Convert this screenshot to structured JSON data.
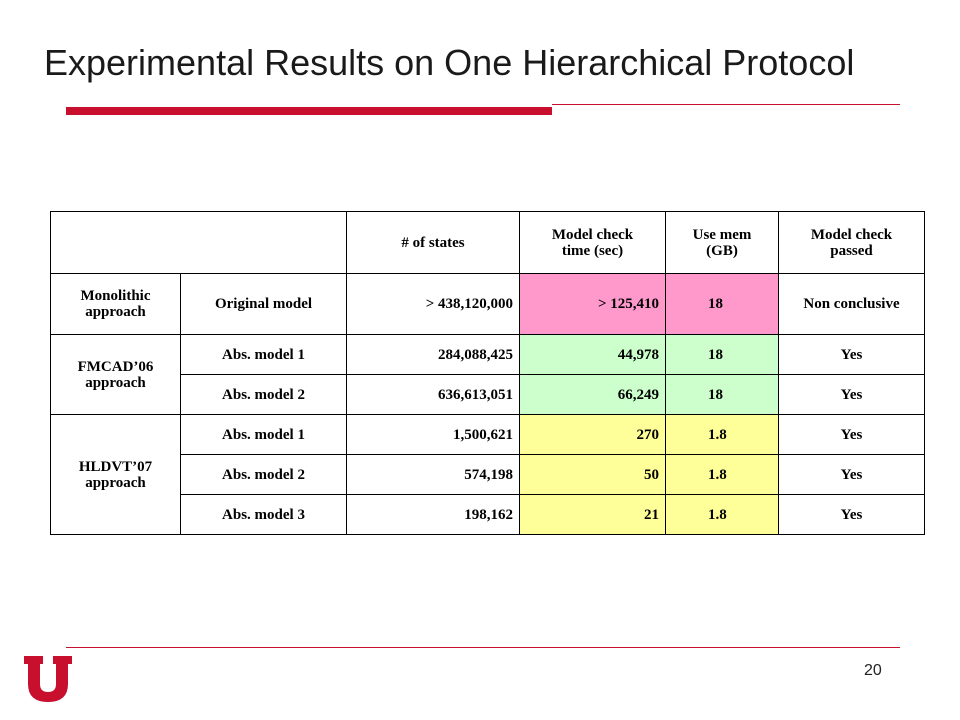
{
  "slide": {
    "title": "Experimental Results on One Hierarchical Protocol",
    "page_number": "20"
  },
  "table": {
    "headers": [
      "# of states",
      "Model check time (sec)",
      "Use mem (GB)",
      "Model check passed"
    ],
    "headers_html": [
      "# of states",
      "Model check<br>time (sec)",
      "Use mem<br>(GB)",
      "Model check<br>passed"
    ],
    "groups": [
      {
        "label": "Monolithic approach"
      },
      {
        "label": "FMCAD’06 approach"
      },
      {
        "label": "HLDVT’07 approach"
      }
    ],
    "rows": [
      {
        "model": "Original model",
        "states": "> 438,120,000",
        "time": "> 125,410",
        "mem": "18",
        "passed": "Non conclusive"
      },
      {
        "model": "Abs. model 1",
        "states": "284,088,425",
        "time": "44,978",
        "mem": "18",
        "passed": "Yes"
      },
      {
        "model": "Abs. model 2",
        "states": "636,613,051",
        "time": "66,249",
        "mem": "18",
        "passed": "Yes"
      },
      {
        "model": "Abs. model 1",
        "states": "1,500,621",
        "time": "270",
        "mem": "1.8",
        "passed": "Yes"
      },
      {
        "model": "Abs. model 2",
        "states": "574,198",
        "time": "50",
        "mem": "1.8",
        "passed": "Yes"
      },
      {
        "model": "Abs. model 3",
        "states": "198,162",
        "time": "21",
        "mem": "1.8",
        "passed": "Yes"
      }
    ]
  },
  "colors": {
    "accent_red": "#c8102e",
    "pink_highlight": "#ff99cc",
    "green_highlight": "#ccffcc",
    "yellow_highlight": "#ffff99"
  },
  "logo": {
    "icon": "university-u-logo-icon"
  }
}
